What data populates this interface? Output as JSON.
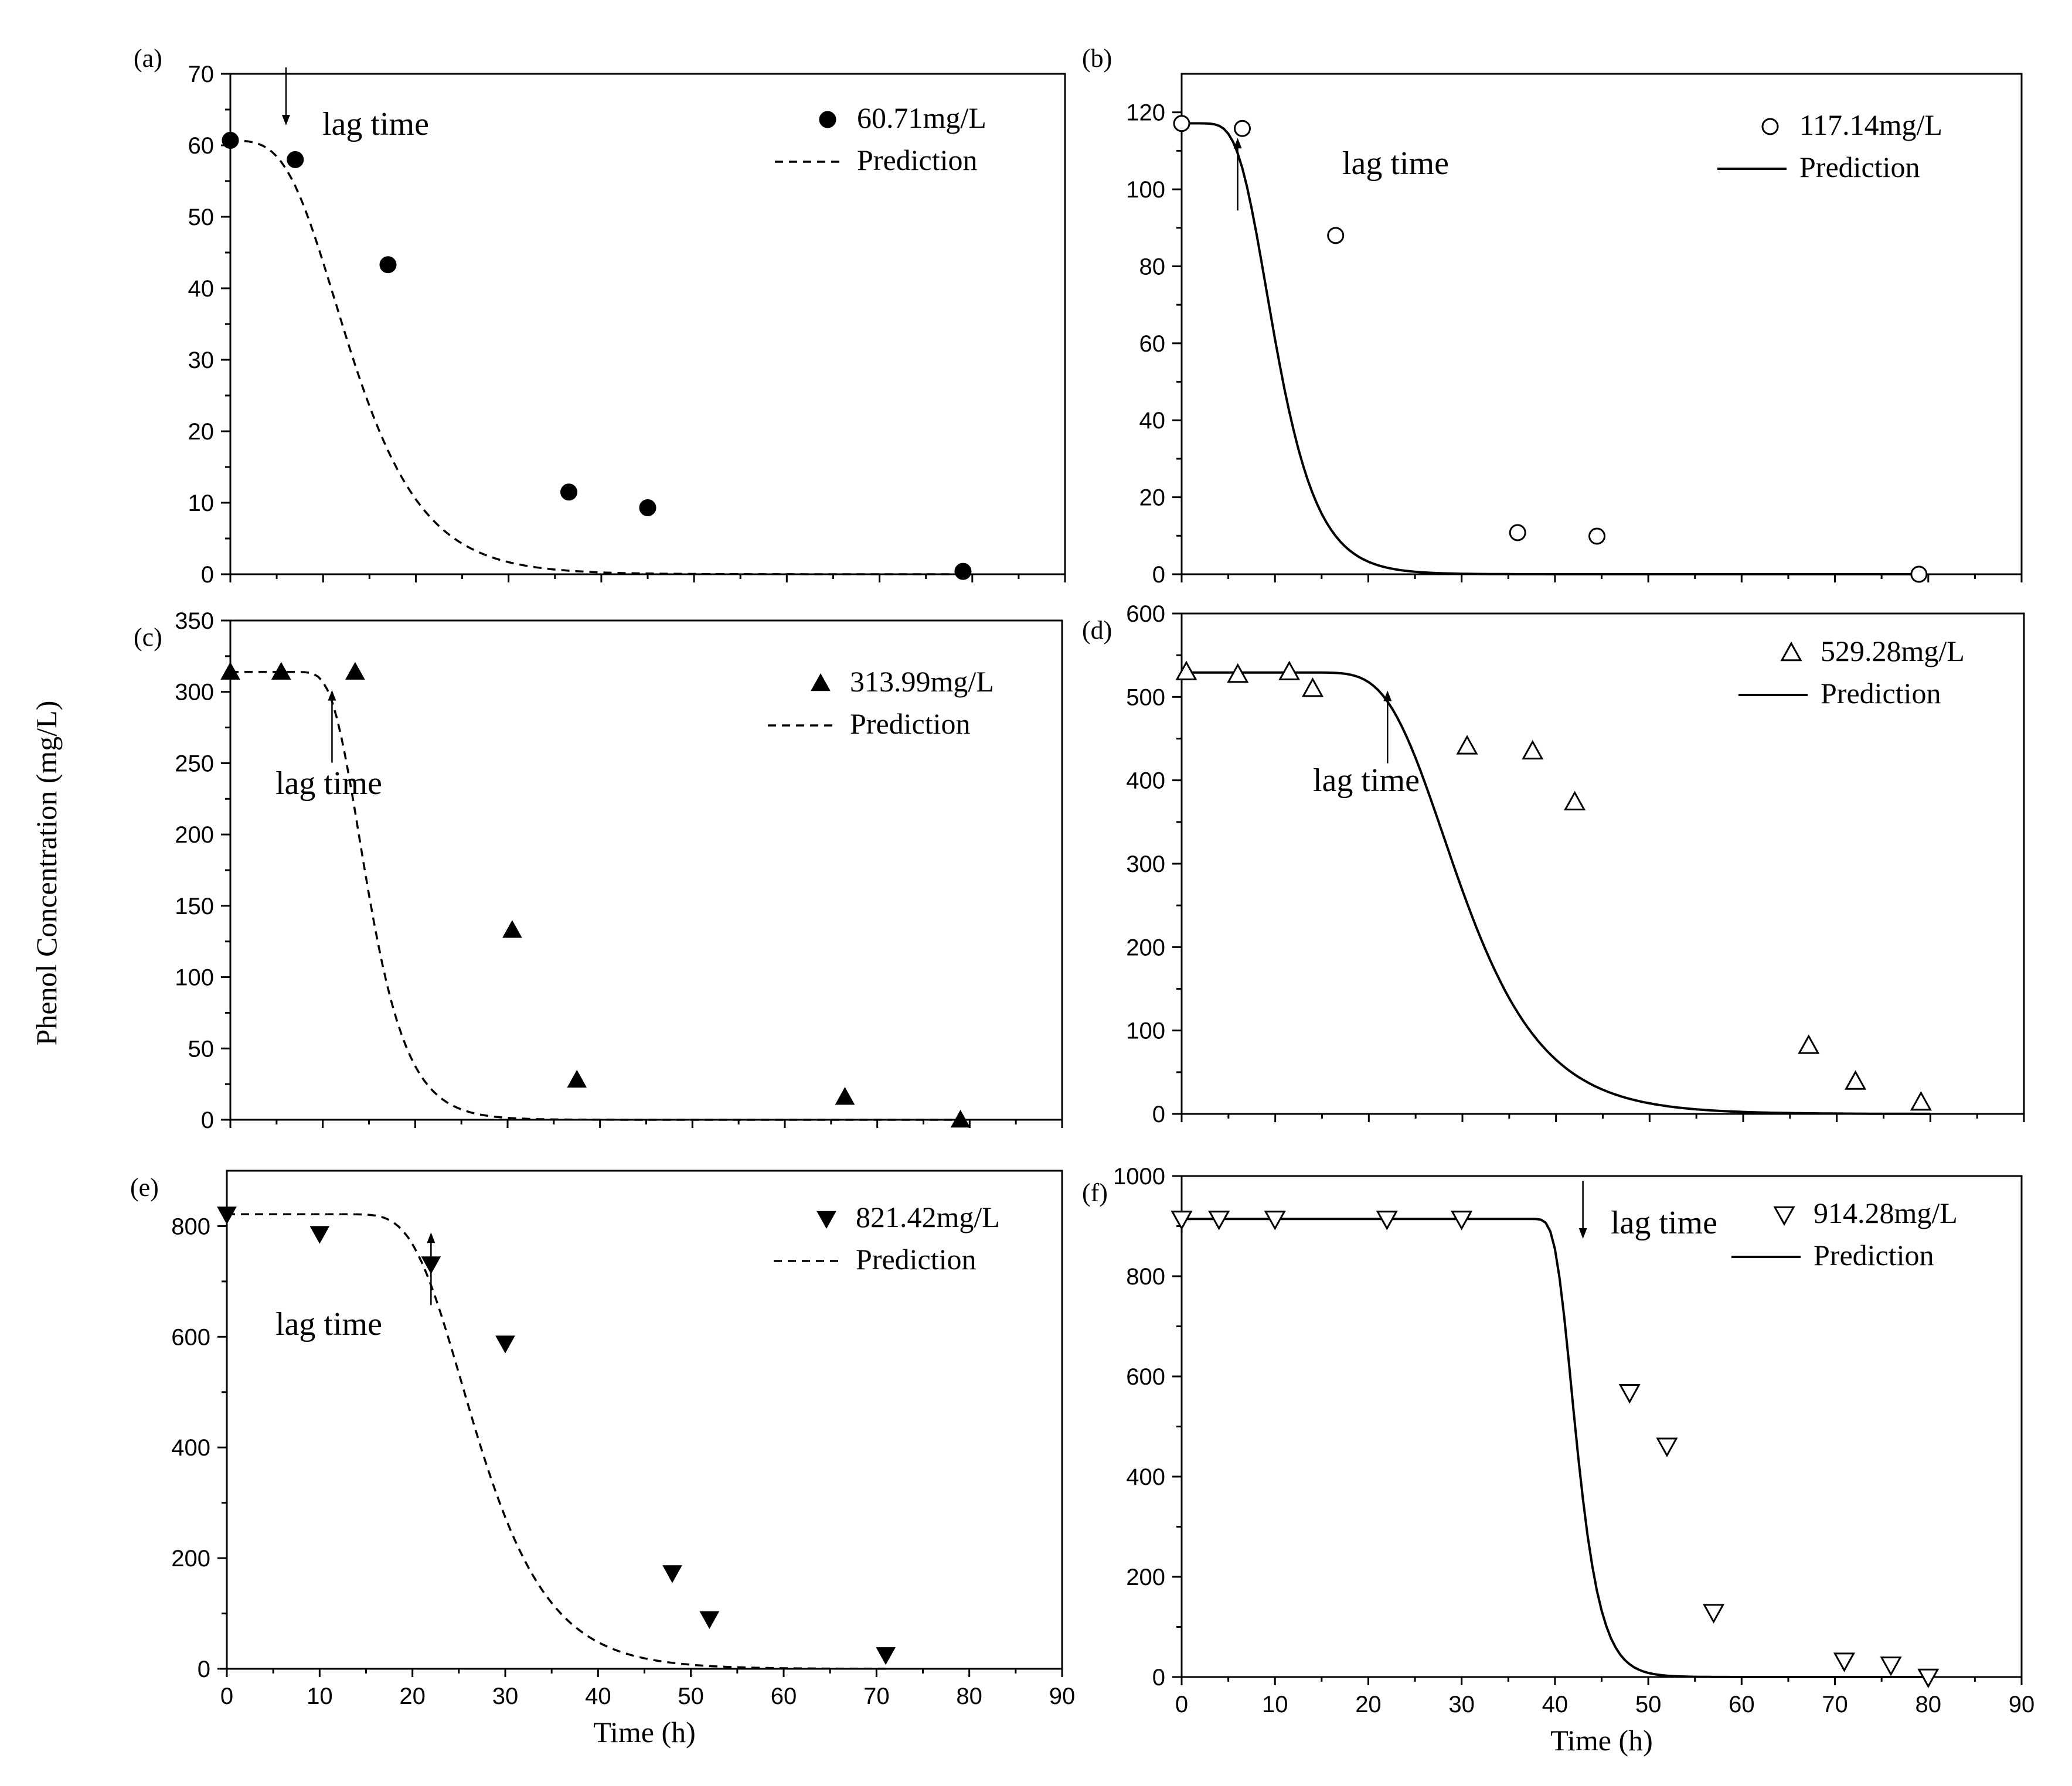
{
  "figure": {
    "y_title": "Phenol Concentration (mg/L)",
    "x_title": "Time (h)"
  },
  "chart_data": [
    {
      "panel": "(a)",
      "type": "scatter",
      "xlim": [
        0,
        90
      ],
      "ylim": [
        0,
        70
      ],
      "yticks": [
        0,
        10,
        20,
        30,
        40,
        50,
        60,
        70
      ],
      "xticks": [],
      "marker": "filled-circle",
      "series_name": "60.71mg/L",
      "fit_name": "Prediction",
      "fit_style": "dashed",
      "fit": {
        "c0": 60.71,
        "lag": 6,
        "mu": 0.07
      },
      "x": [
        0,
        7,
        17,
        36.5,
        45,
        79
      ],
      "y": [
        60.7,
        58,
        43.3,
        11.5,
        9.3,
        0.4
      ],
      "annotation": {
        "text": "lag time",
        "x": 6,
        "arrow": "down"
      },
      "xlabel": "",
      "ylabel": ""
    },
    {
      "panel": "(b)",
      "type": "scatter",
      "xlim": [
        0,
        90
      ],
      "ylim": [
        0,
        130
      ],
      "yticks": [
        0,
        20,
        40,
        60,
        80,
        100,
        120
      ],
      "xticks": [],
      "marker": "open-circle",
      "series_name": "117.14mg/L",
      "fit_name": "Prediction",
      "fit_style": "solid",
      "fit": {
        "c0": 117.14,
        "lag": 6,
        "mu": 0.12
      },
      "x": [
        0,
        6.5,
        16.5,
        36,
        44.5,
        79
      ],
      "y": [
        117.1,
        115.8,
        88,
        10.8,
        9.9,
        0
      ],
      "annotation": {
        "text": "lag time",
        "x": 6,
        "arrow": "up"
      },
      "xlabel": "",
      "ylabel": ""
    },
    {
      "panel": "(c)",
      "type": "scatter",
      "xlim": [
        0,
        90
      ],
      "ylim": [
        0,
        350
      ],
      "yticks": [
        0,
        50,
        100,
        150,
        200,
        250,
        300,
        350
      ],
      "xticks": [],
      "marker": "filled-triangle-up",
      "series_name": "313.99mg/L",
      "fit_name": "Prediction",
      "fit_style": "dashed",
      "fit": {
        "c0": 313.99,
        "lag": 11,
        "mu": 0.125
      },
      "x": [
        0,
        5.5,
        13.5,
        30.5,
        37.5,
        66.5,
        79
      ],
      "y": [
        314,
        314,
        314,
        133,
        28,
        16,
        0
      ],
      "annotation": {
        "text": "lag time",
        "x": 11,
        "arrow": "up"
      },
      "xlabel": "",
      "ylabel": ""
    },
    {
      "panel": "(d)",
      "type": "scatter",
      "xlim": [
        0,
        90
      ],
      "ylim": [
        0,
        600
      ],
      "yticks": [
        0,
        100,
        200,
        300,
        400,
        500,
        600
      ],
      "xticks": [],
      "marker": "open-triangle-up",
      "series_name": "529.28mg/L",
      "fit_name": "Prediction",
      "fit_style": "solid",
      "fit": {
        "c0": 529.28,
        "lag": 22,
        "mu": 0.062,
        "xmax": 80
      },
      "x": [
        0.5,
        6,
        11.5,
        14,
        30.5,
        37.5,
        42,
        67,
        72,
        79
      ],
      "y": [
        530,
        527,
        530,
        510,
        441,
        435,
        374,
        82,
        39,
        14
      ],
      "annotation": {
        "text": "lag time",
        "x": 22,
        "arrow": "up"
      },
      "xlabel": "",
      "ylabel": ""
    },
    {
      "panel": "(e)",
      "type": "scatter",
      "xlim": [
        0,
        90
      ],
      "ylim": [
        0,
        900
      ],
      "yticks": [
        0,
        200,
        400,
        600,
        800
      ],
      "xticks": [
        0,
        10,
        20,
        30,
        40,
        50,
        60,
        70,
        80,
        90
      ],
      "marker": "filled-triangle-down",
      "series_name": "821.42mg/L",
      "fit_name": "Prediction",
      "fit_style": "dashed",
      "fit": {
        "c0": 821.42,
        "lag": 20,
        "mu": 0.07,
        "xmax": 71
      },
      "x": [
        0,
        10,
        22,
        30,
        48,
        52,
        71
      ],
      "y": [
        821,
        786,
        731,
        588,
        173,
        90,
        25
      ],
      "annotation": {
        "text": "lag time",
        "x": 22,
        "arrow": "up"
      },
      "xlabel": "Time (h)",
      "ylabel": ""
    },
    {
      "panel": "(f)",
      "type": "scatter",
      "xlim": [
        0,
        90
      ],
      "ylim": [
        0,
        1000
      ],
      "yticks": [
        0,
        200,
        400,
        600,
        800,
        1000
      ],
      "xticks": [
        0,
        10,
        20,
        30,
        40,
        50,
        60,
        70,
        80,
        90
      ],
      "marker": "open-triangle-down",
      "series_name": "914.28mg/L",
      "fit_name": "Prediction",
      "fit_style": "solid",
      "fit": {
        "c0": 914.28,
        "lag": 40,
        "mu": 0.21,
        "xmax": 80
      },
      "x": [
        0,
        4,
        10,
        22,
        30,
        48,
        52,
        57,
        71,
        76,
        80
      ],
      "y": [
        914,
        914,
        914,
        914,
        914,
        568,
        461,
        129,
        32,
        24,
        0
      ],
      "annotation": {
        "text": "lag time",
        "x": 43,
        "arrow": "down"
      },
      "xlabel": "Time (h)",
      "ylabel": ""
    }
  ]
}
